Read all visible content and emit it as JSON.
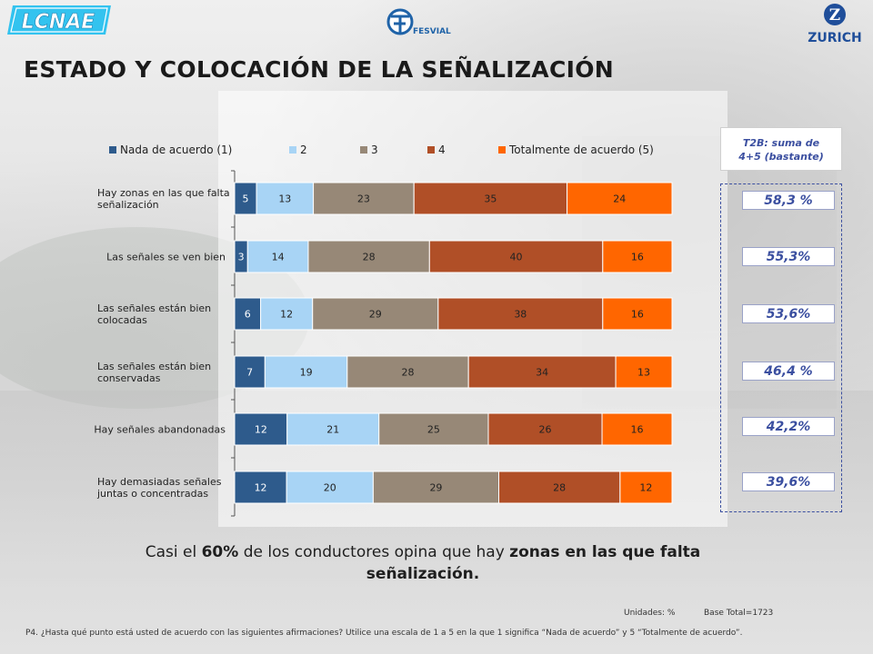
{
  "header": {
    "title": "ESTADO Y COLOCACIÓN DE LA SEÑALIZACIÓN",
    "logo_left": "LCNAE",
    "logo_center": "FESVIAL",
    "logo_right": "ZURICH"
  },
  "colors": {
    "s1": "#2e5b8c",
    "s2": "#a8d4f5",
    "s3": "#978877",
    "s4": "#b04f27",
    "s5": "#ff6600",
    "accent_blue": "#3b4fa0"
  },
  "chart_data": {
    "type": "bar",
    "orientation": "horizontal-stacked-100",
    "categories": [
      [
        "Hay zonas en las que falta",
        "señalización"
      ],
      [
        "Las señales se ven bien"
      ],
      [
        "Las señales están bien",
        "colocadas"
      ],
      [
        "Las señales están bien",
        "conservadas"
      ],
      [
        "Hay señales abandonadas"
      ],
      [
        "Hay demasiadas señales",
        "juntas o concentradas"
      ]
    ],
    "series": [
      {
        "name": "Nada de acuerdo (1)",
        "values": [
          5,
          3,
          6,
          7,
          12,
          12
        ]
      },
      {
        "name": "2",
        "values": [
          13,
          14,
          12,
          19,
          21,
          20
        ]
      },
      {
        "name": "3",
        "values": [
          23,
          28,
          29,
          28,
          25,
          29
        ]
      },
      {
        "name": "4",
        "values": [
          35,
          40,
          38,
          34,
          26,
          28
        ]
      },
      {
        "name": "Totalmente de acuerdo (5)",
        "values": [
          24,
          16,
          16,
          13,
          16,
          12
        ]
      }
    ],
    "xlim": [
      0,
      100
    ],
    "legend_position": "top"
  },
  "t2b": {
    "heading_line1": "T2B: suma de",
    "heading_line2": "4+5 (bastante)",
    "values": [
      "58,3 %",
      "55,3%",
      "53,6%",
      "46,4 %",
      "42,2%",
      "39,6%"
    ]
  },
  "conclusion": {
    "part1": "Casi el ",
    "bold1": "60%",
    "part2": " de los conductores opina que hay ",
    "bold2": "zonas en las que falta",
    "bold3": "señalización."
  },
  "footer": {
    "units": "Unidades: %",
    "base": "Base Total=1723",
    "question": "P4. ¿Hasta qué punto está usted de acuerdo con las siguientes afirmaciones? Utilice una escala de 1 a 5 en la que 1 significa “Nada de acuerdo” y 5 “Totalmente de acuerdo”."
  }
}
